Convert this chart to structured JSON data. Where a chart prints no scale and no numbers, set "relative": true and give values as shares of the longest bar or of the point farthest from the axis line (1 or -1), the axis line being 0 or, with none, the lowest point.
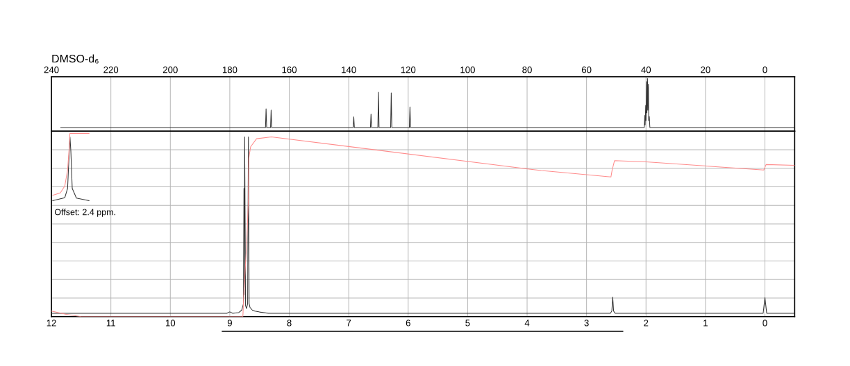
{
  "chart_data": [
    {
      "type": "line",
      "title": "DMSO-d₆",
      "relative": true,
      "xlim": [
        240,
        -10
      ],
      "xticks": [
        240,
        220,
        200,
        180,
        160,
        140,
        120,
        100,
        80,
        60,
        40,
        20,
        0
      ],
      "grid": "x",
      "tick_labels": "x",
      "series": [
        {
          "color": "#333333",
          "x": [
            236.9,
            168.0,
            167.8,
            167.6,
            166.3,
            166.1,
            165.9,
            138.5,
            138.3,
            138.1,
            132.7,
            132.5,
            132.3,
            130.2,
            130.0,
            129.8,
            125.9,
            125.7,
            125.5,
            119.6,
            119.4,
            119.2,
            40.6,
            40.4,
            40.3,
            40.1,
            40.0,
            39.8,
            39.7,
            39.5,
            39.4,
            39.2,
            39.1,
            38.9,
            38.7,
            -10
          ],
          "values": [
            0.07,
            0.07,
            0.423,
            0.07,
            0.07,
            0.4,
            0.07,
            0.07,
            0.272,
            0.07,
            0.07,
            0.325,
            0.07,
            0.07,
            0.741,
            0.07,
            0.07,
            0.728,
            0.07,
            0.07,
            0.46,
            0.07,
            0.07,
            0.3,
            0.12,
            0.49,
            0.2,
            0.94,
            0.35,
            1.0,
            0.4,
            0.89,
            0.2,
            0.28,
            0.07,
            0.07
          ]
        }
      ]
    },
    {
      "type": "line",
      "relative": true,
      "xlim": [
        12,
        -0.5
      ],
      "xticks": [
        12,
        11,
        10,
        9,
        8,
        7,
        6,
        5,
        4,
        3,
        2,
        1,
        0
      ],
      "grid": true,
      "tick_labels": "x",
      "annotations": [
        "Offset: 2.4 ppm."
      ],
      "series": [
        {
          "color": "#333333",
          "x": [
            12.0,
            9.05,
            9.0,
            8.95,
            8.85,
            8.8,
            8.785,
            8.77,
            8.762,
            8.758,
            8.75,
            8.735,
            8.719,
            8.7,
            8.687,
            8.675,
            8.66,
            8.62,
            8.58,
            8.5,
            8.35,
            2.6,
            2.575,
            2.56,
            2.545,
            2.52,
            0.03,
            0.0,
            -0.03,
            -0.5
          ],
          "values": [
            0.018,
            0.018,
            0.026,
            0.018,
            0.022,
            0.035,
            0.052,
            0.07,
            0.7,
            0.12,
            0.981,
            0.06,
            0.044,
            0.07,
            0.981,
            0.07,
            0.05,
            0.035,
            0.03,
            0.025,
            0.018,
            0.018,
            0.03,
            0.107,
            0.03,
            0.018,
            0.018,
            0.104,
            0.018,
            0.018
          ]
        },
        {
          "color": "#ff8c8c",
          "x": [
            12.0,
            11.75,
            11.5,
            8.78,
            8.76,
            8.72,
            8.69,
            8.68,
            8.65,
            8.55,
            8.3,
            3.76,
            2.59,
            2.57,
            2.53,
            2.0,
            0.02,
            0.0,
            -0.02,
            -0.5
          ],
          "values": [
            0.03,
            0.012,
            0.0,
            0.0,
            0.15,
            0.373,
            0.612,
            0.865,
            0.927,
            0.971,
            0.981,
            0.797,
            0.762,
            0.8,
            0.851,
            0.845,
            0.8,
            0.815,
            0.83,
            0.826
          ]
        },
        {
          "color": "#333333",
          "x": [
            11.98,
            11.775,
            11.728,
            11.7,
            11.688,
            11.673,
            11.65,
            11.58,
            11.366
          ],
          "values": [
            0.633,
            0.649,
            0.7,
            0.902,
            0.981,
            0.902,
            0.7,
            0.647,
            0.633
          ]
        },
        {
          "color": "#ff8c8c",
          "x": [
            11.98,
            11.85,
            11.775,
            11.728,
            11.7,
            11.69,
            11.366
          ],
          "values": [
            0.662,
            0.675,
            0.713,
            0.801,
            0.927,
            1.0,
            1.0
          ]
        }
      ]
    }
  ]
}
